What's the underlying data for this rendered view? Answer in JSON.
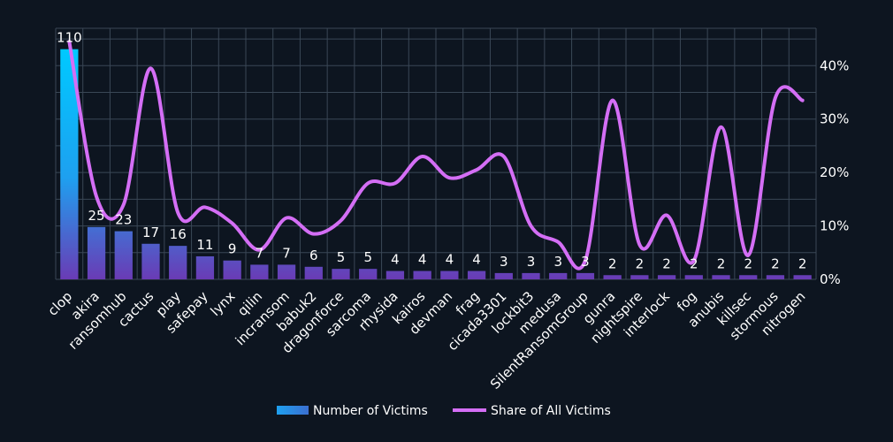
{
  "chart_data": {
    "type": "bar",
    "categories": [
      "clop",
      "akira",
      "ransomhub",
      "cactus",
      "play",
      "safepay",
      "lynx",
      "qilin",
      "incransom",
      "babuk2",
      "dragonforce",
      "sarcoma",
      "rhysida",
      "kairos",
      "devman",
      "frag",
      "cicada3301",
      "lockbit3",
      "medusa",
      "SilentRansomGroup",
      "gunra",
      "nightspire",
      "interlock",
      "fog",
      "anubis",
      "killsec",
      "stormous",
      "nitrogen"
    ],
    "series": [
      {
        "name": "Number of Victims",
        "type": "bar",
        "axis": "left",
        "values": [
          110,
          25,
          23,
          17,
          16,
          11,
          9,
          7,
          7,
          6,
          5,
          5,
          4,
          4,
          4,
          4,
          3,
          3,
          3,
          3,
          2,
          2,
          2,
          2,
          2,
          2,
          2,
          2
        ],
        "labels": [
          "110",
          "25",
          "23",
          "17",
          "16",
          "11",
          "9",
          "7",
          "7",
          "6",
          "5",
          "5",
          "4",
          "4",
          "4",
          "4",
          "3",
          "3",
          "3",
          "3",
          "2",
          "2",
          "2",
          "2",
          "2",
          "2",
          "2",
          "2"
        ]
      },
      {
        "name": "Share of All Victims",
        "type": "line",
        "axis": "right",
        "values": [
          44.5,
          15.5,
          14.0,
          39.5,
          12.5,
          13.5,
          10.5,
          5.5,
          11.5,
          8.5,
          11.0,
          18.0,
          18.0,
          23.0,
          19.0,
          20.5,
          23.0,
          10.0,
          7.0,
          3.5,
          33.5,
          6.5,
          12.0,
          3.5,
          28.5,
          4.5,
          34.0,
          33.5
        ]
      }
    ],
    "y_left_range": [
      0,
      120
    ],
    "y_right_range": [
      0,
      47
    ],
    "y_right_ticks": [
      "0%",
      "10%",
      "20%",
      "30%",
      "40%"
    ],
    "y_right_tick_values": [
      0,
      10,
      20,
      30,
      40
    ],
    "grid": true,
    "legend_position": "bottom",
    "colors": {
      "background": "#0d1520",
      "grid": "#3a4756",
      "bar_top": "#00c8ff",
      "bar_bottom": "#6a3bb5",
      "line": "#d46ef5",
      "text": "#ffffff"
    }
  }
}
